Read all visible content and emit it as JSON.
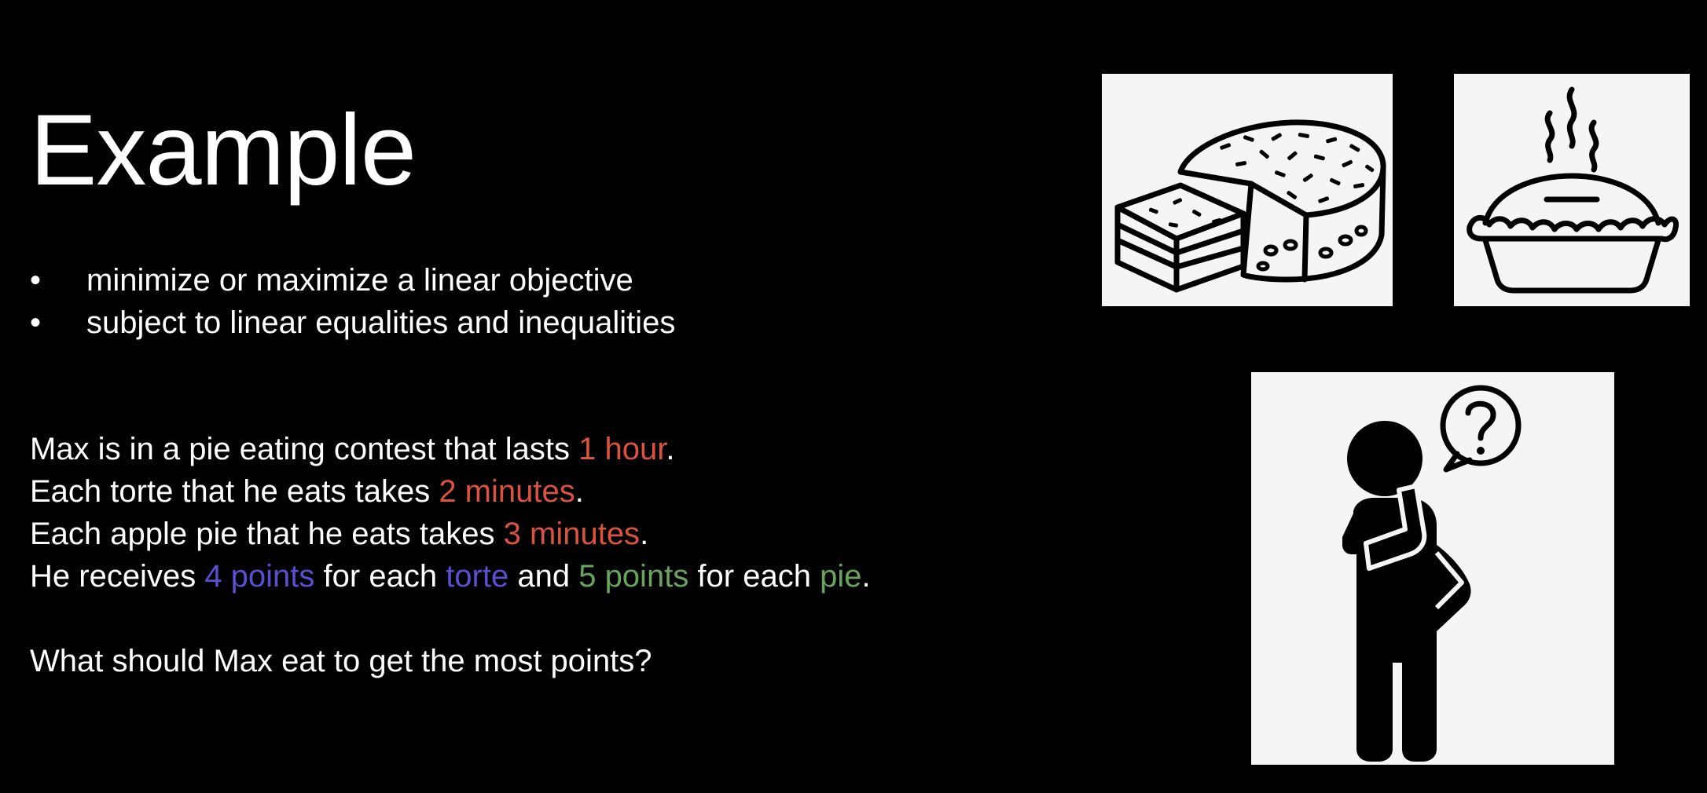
{
  "slide": {
    "title": "Example",
    "bullets": [
      "minimize or maximize a linear objective",
      "subject to linear equalities and inequalities"
    ],
    "bullet_symbol": "•",
    "story": {
      "line1": {
        "text": "Max is in a pie eating contest that lasts ",
        "hl": "1 hour",
        "end": "."
      },
      "line2": {
        "text": "Each torte that he eats takes ",
        "hl": "2 minutes",
        "end": "."
      },
      "line3": {
        "text": "Each apple pie that he eats takes ",
        "hl": "3 minutes",
        "end": "."
      },
      "line4": {
        "p1": "He receives ",
        "hl1": "4 points",
        "p2": " for each ",
        "hl2": "torte",
        "p3": " and ",
        "hl3": "5 points",
        "p4": " for each ",
        "hl4": "pie",
        "end": "."
      }
    },
    "question": "What should Max eat to get the most points?",
    "colors": {
      "background": "#000000",
      "text": "#ffffff",
      "time_highlight": "#d9533f",
      "torte_highlight": "#5a4fcf",
      "pie_highlight": "#6aa35e",
      "panel_background": "#f5f5f5"
    },
    "images": {
      "cake": "cake-slice-icon",
      "pie": "steaming-pie-icon",
      "thinker": "thinking-person-icon"
    }
  }
}
